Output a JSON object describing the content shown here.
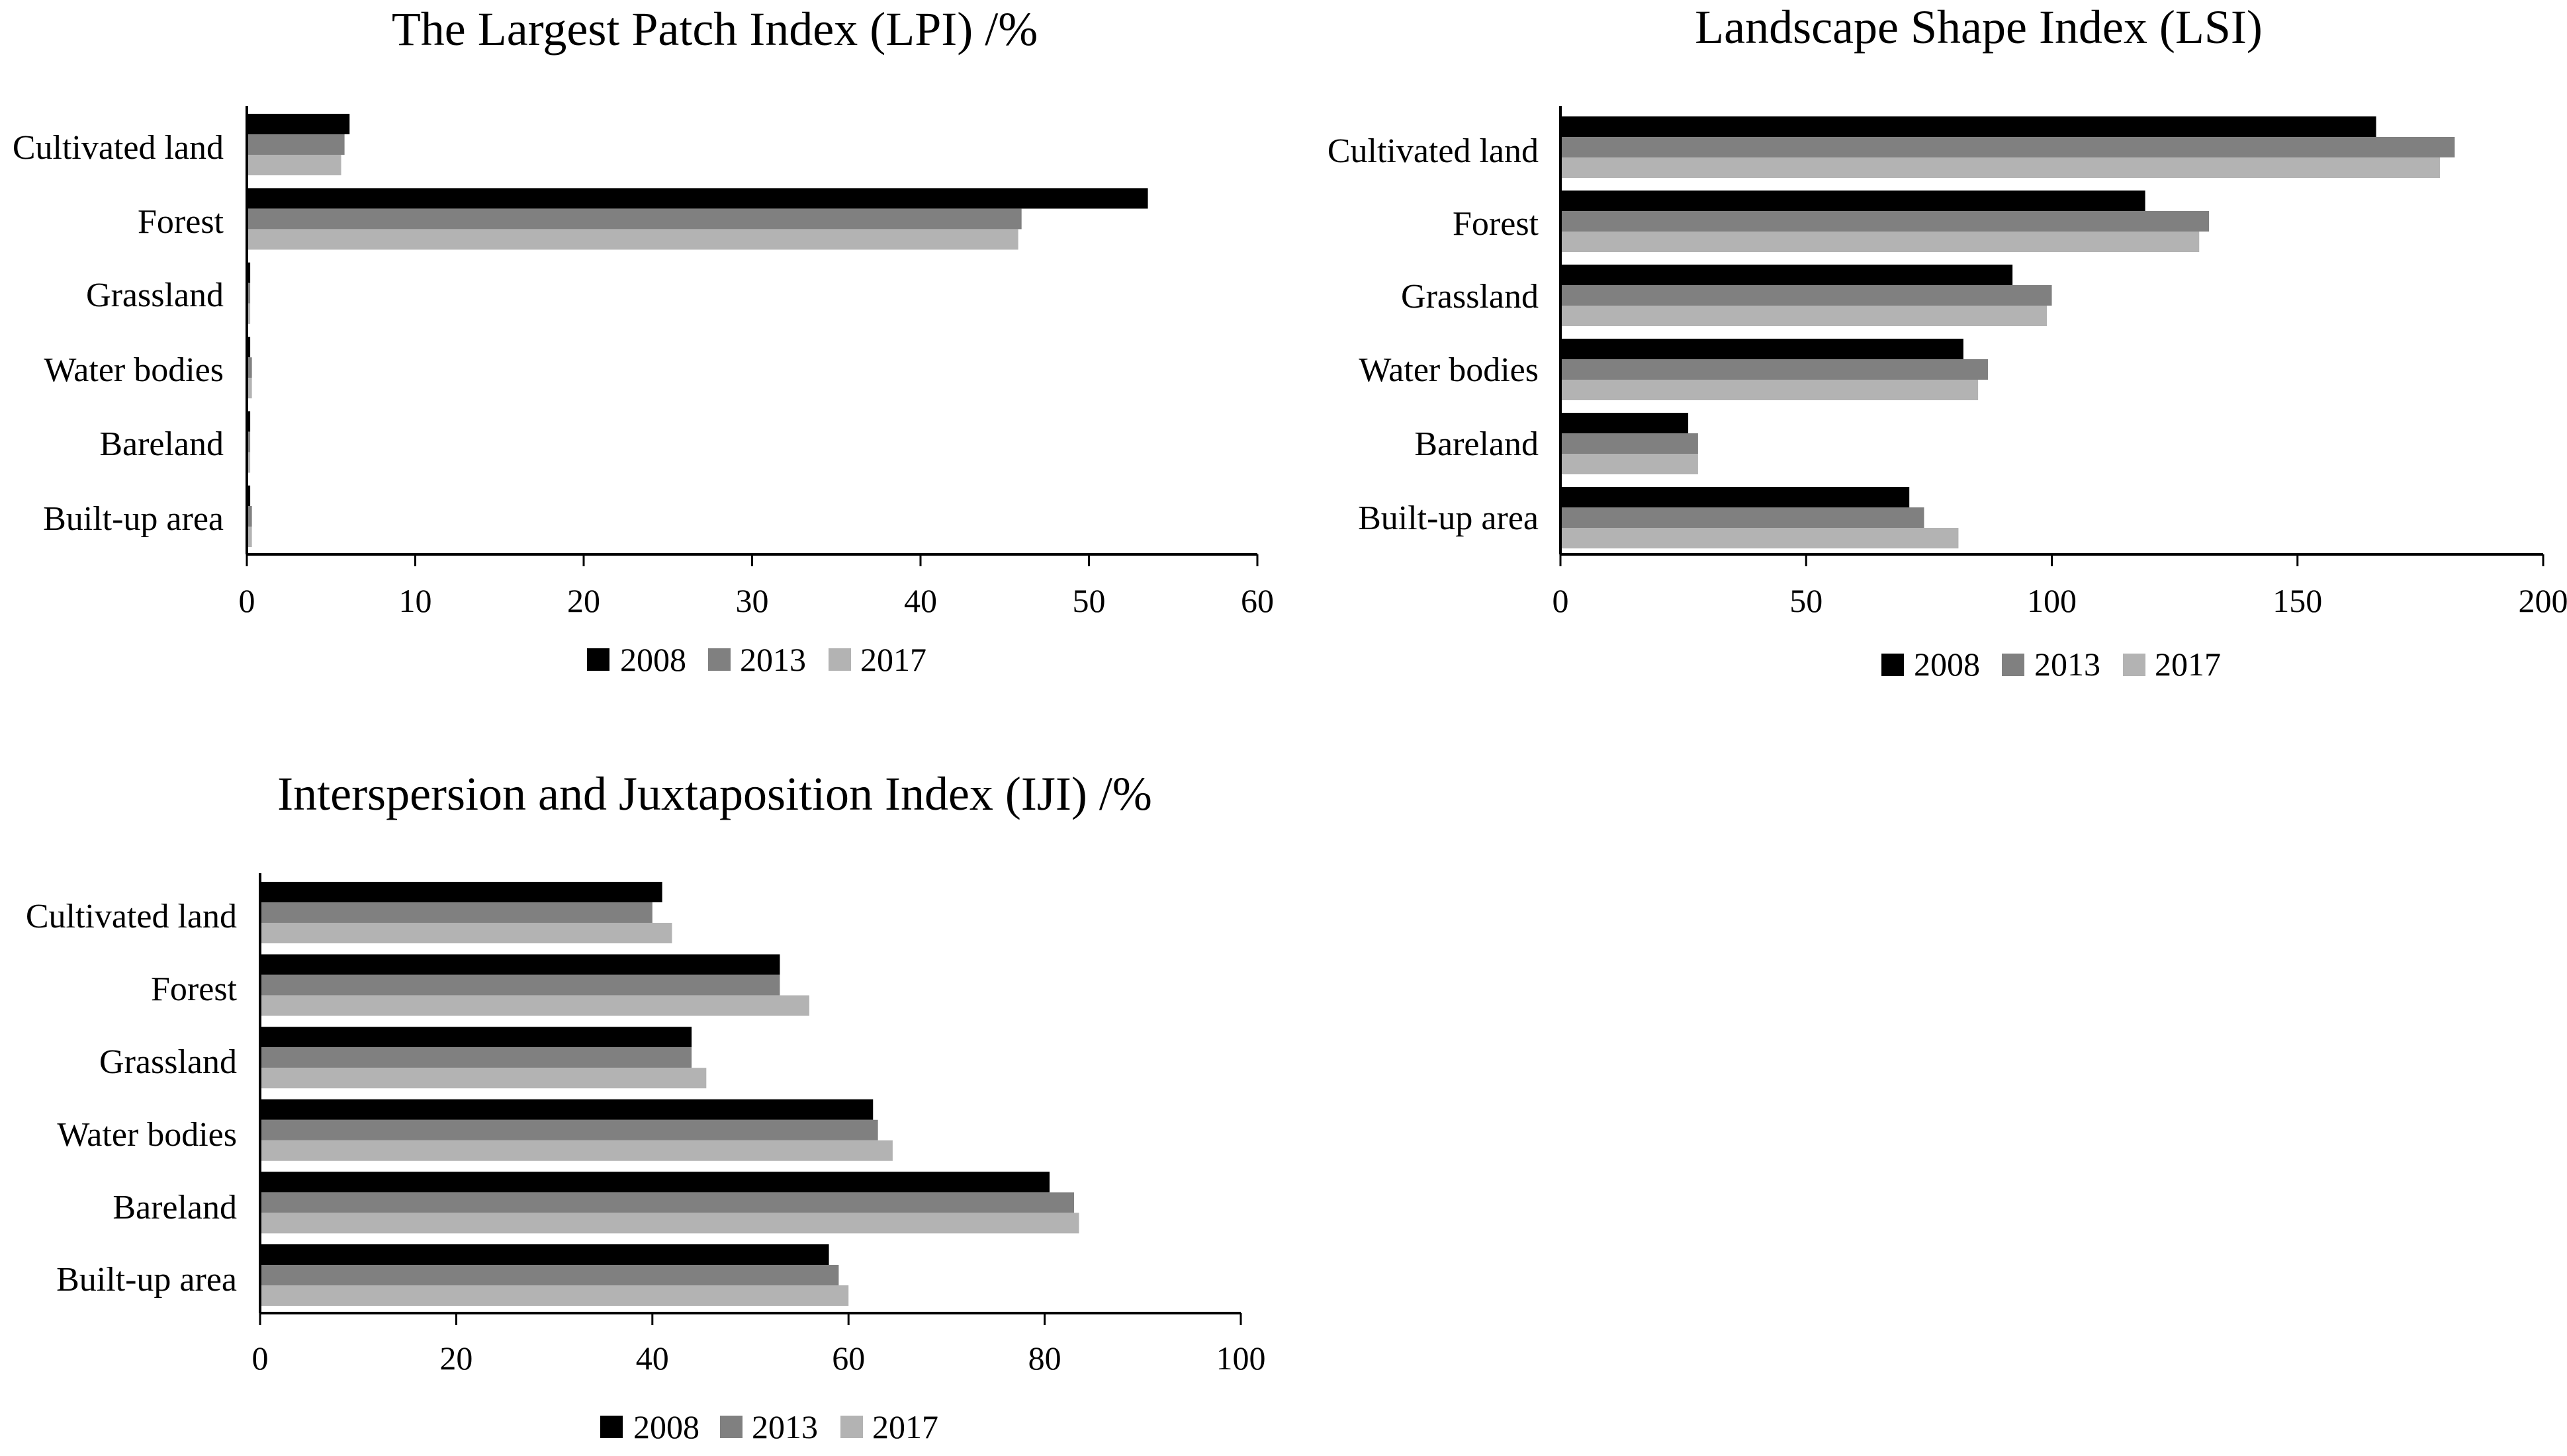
{
  "legend_years": [
    "2008",
    "2013",
    "2017"
  ],
  "colors": {
    "2008": "#000000",
    "2013": "#808080",
    "2017": "#b3b3b3",
    "axis": "#000000",
    "text": "#000000"
  },
  "chart_data": [
    {
      "id": "lpi",
      "type": "bar",
      "orientation": "horizontal",
      "title": "The Largest Patch Index (LPI) /%",
      "xlabel": "",
      "ylabel": "",
      "categories": [
        "Cultivated land",
        "Forest",
        "Grassland",
        "Water bodies",
        "Bareland",
        "Built-up area"
      ],
      "series": [
        {
          "name": "2008",
          "values": [
            6.1,
            53.5,
            0.2,
            0.2,
            0.2,
            0.2
          ]
        },
        {
          "name": "2013",
          "values": [
            5.8,
            46.0,
            0.2,
            0.3,
            0.2,
            0.3
          ]
        },
        {
          "name": "2017",
          "values": [
            5.6,
            45.8,
            0.2,
            0.3,
            0.2,
            0.3
          ]
        }
      ],
      "xlim": [
        0,
        60
      ],
      "ticks": [
        "0",
        "10",
        "20",
        "30",
        "40",
        "50",
        "60"
      ],
      "grid": false,
      "legend": "bottom-center"
    },
    {
      "id": "lsi",
      "type": "bar",
      "orientation": "horizontal",
      "title": "Landscape Shape Index (LSI)",
      "xlabel": "",
      "ylabel": "",
      "categories": [
        "Cultivated land",
        "Forest",
        "Grassland",
        "Water bodies",
        "Bareland",
        "Built-up area"
      ],
      "series": [
        {
          "name": "2008",
          "values": [
            166,
            119,
            92,
            82,
            26,
            71
          ]
        },
        {
          "name": "2013",
          "values": [
            182,
            132,
            100,
            87,
            28,
            74
          ]
        },
        {
          "name": "2017",
          "values": [
            179,
            130,
            99,
            85,
            28,
            81
          ]
        }
      ],
      "xlim": [
        0,
        200
      ],
      "ticks": [
        "0",
        "50",
        "100",
        "150",
        "200"
      ],
      "grid": false,
      "legend": "bottom-center"
    },
    {
      "id": "iji",
      "type": "bar",
      "orientation": "horizontal",
      "title": "Interspersion and Juxtaposition Index (IJI) /%",
      "xlabel": "",
      "ylabel": "",
      "categories": [
        "Cultivated land",
        "Forest",
        "Grassland",
        "Water bodies",
        "Bareland",
        "Built-up area"
      ],
      "series": [
        {
          "name": "2008",
          "values": [
            41,
            53,
            44,
            62.5,
            80.5,
            58
          ]
        },
        {
          "name": "2013",
          "values": [
            40,
            53,
            44,
            63,
            83,
            59
          ]
        },
        {
          "name": "2017",
          "values": [
            42,
            56,
            45.5,
            64.5,
            83.5,
            60
          ]
        }
      ],
      "xlim": [
        0,
        100
      ],
      "ticks": [
        "0",
        "20",
        "40",
        "60",
        "80",
        "100"
      ],
      "grid": false,
      "legend": "bottom-center"
    }
  ]
}
